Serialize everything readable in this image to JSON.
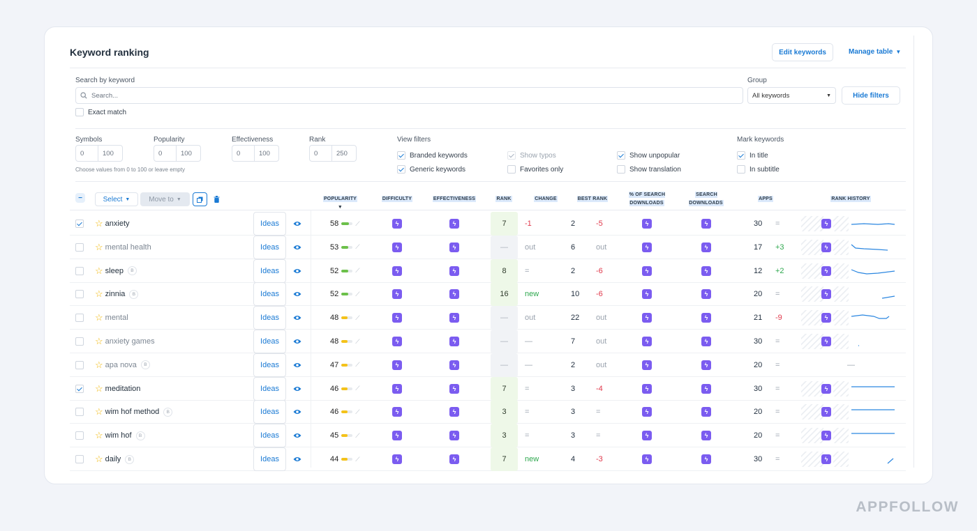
{
  "header": {
    "title": "Keyword ranking",
    "edit_label": "Edit keywords",
    "manage_label": "Manage table"
  },
  "search": {
    "label": "Search by keyword",
    "placeholder": "Search...",
    "exact": "Exact match"
  },
  "group": {
    "label": "Group",
    "value": "All keywords",
    "hide": "Hide filters"
  },
  "ranges": [
    {
      "label": "Symbols",
      "min": "0",
      "max": "100"
    },
    {
      "label": "Popularity",
      "min": "0",
      "max": "100"
    },
    {
      "label": "Effectiveness",
      "min": "0",
      "max": "100"
    },
    {
      "label": "Rank",
      "min": "0",
      "max": "250"
    }
  ],
  "range_hint": "Choose values from 0 to 100 or leave empty",
  "view_filters": {
    "label": "View filters",
    "items": [
      {
        "label": "Branded keywords",
        "checked": true,
        "disabled": false
      },
      {
        "label": "Generic keywords",
        "checked": true,
        "disabled": false
      },
      {
        "label": "Show typos",
        "checked": true,
        "disabled": true
      },
      {
        "label": "Favorites only",
        "checked": false,
        "disabled": false
      },
      {
        "label": "Show unpopular",
        "checked": true,
        "disabled": false
      },
      {
        "label": "Show translation",
        "checked": false,
        "disabled": false
      }
    ]
  },
  "mark": {
    "label": "Mark keywords",
    "items": [
      {
        "label": "In title",
        "checked": true
      },
      {
        "label": "In subtitle",
        "checked": false
      }
    ]
  },
  "toolbar": {
    "select": "Select",
    "move": "Move to"
  },
  "columns": [
    "POPULARITY",
    "DIFFICULTY",
    "EFFECTIVENESS",
    "RANK",
    "CHANGE",
    "BEST RANK",
    "% OF SEARCH DOWNLOADS",
    "SEARCH DOWNLOADS",
    "APPS",
    "RANK HISTORY"
  ],
  "ideas_label": "Ideas",
  "badge_label": "B",
  "rows": [
    {
      "checked": true,
      "keyword": "anxiety",
      "grey": false,
      "branded": false,
      "popularity": "58",
      "rank": "7",
      "change": "-1",
      "best": "2",
      "best_delta": "-5",
      "apps": "30",
      "apps_delta": "="
    },
    {
      "checked": false,
      "keyword": "mental health",
      "grey": true,
      "branded": false,
      "popularity": "53",
      "rank": "—",
      "change": "out",
      "best": "6",
      "best_delta": "out",
      "apps": "17",
      "apps_delta": "+3"
    },
    {
      "checked": false,
      "keyword": "sleep",
      "grey": false,
      "branded": true,
      "popularity": "52",
      "rank": "8",
      "change": "=",
      "best": "2",
      "best_delta": "-6",
      "apps": "12",
      "apps_delta": "+2"
    },
    {
      "checked": false,
      "keyword": "zinnia",
      "grey": false,
      "branded": true,
      "popularity": "52",
      "rank": "16",
      "change": "new",
      "best": "10",
      "best_delta": "-6",
      "apps": "20",
      "apps_delta": "="
    },
    {
      "checked": false,
      "keyword": "mental",
      "grey": true,
      "branded": false,
      "popularity": "48",
      "rank": "—",
      "change": "out",
      "best": "22",
      "best_delta": "out",
      "apps": "21",
      "apps_delta": "-9"
    },
    {
      "checked": false,
      "keyword": "anxiety games",
      "grey": true,
      "branded": false,
      "popularity": "48",
      "rank": "—",
      "change": "—",
      "best": "7",
      "best_delta": "out",
      "apps": "30",
      "apps_delta": "="
    },
    {
      "checked": false,
      "keyword": "apa nova",
      "grey": true,
      "branded": true,
      "popularity": "47",
      "rank": "—",
      "change": "—",
      "best": "2",
      "best_delta": "out",
      "apps": "20",
      "apps_delta": "="
    },
    {
      "checked": true,
      "keyword": "meditation",
      "grey": false,
      "branded": false,
      "popularity": "46",
      "rank": "7",
      "change": "=",
      "best": "3",
      "best_delta": "-4",
      "apps": "30",
      "apps_delta": "="
    },
    {
      "checked": false,
      "keyword": "wim hof method",
      "grey": false,
      "branded": true,
      "popularity": "46",
      "rank": "3",
      "change": "=",
      "best": "3",
      "best_delta": "=",
      "apps": "20",
      "apps_delta": "="
    },
    {
      "checked": false,
      "keyword": "wim hof",
      "grey": false,
      "branded": true,
      "popularity": "45",
      "rank": "3",
      "change": "=",
      "best": "3",
      "best_delta": "=",
      "apps": "20",
      "apps_delta": "="
    },
    {
      "checked": false,
      "keyword": "daily",
      "grey": false,
      "branded": true,
      "popularity": "44",
      "rank": "7",
      "change": "new",
      "best": "4",
      "best_delta": "-3",
      "apps": "30",
      "apps_delta": "="
    }
  ],
  "no_history": "—",
  "watermark": "APPFOLLOW",
  "colors": {
    "accent": "#1a7ad4",
    "bolt": "#7b5cf0",
    "red": "#e0384b",
    "green": "#2fa84f"
  }
}
